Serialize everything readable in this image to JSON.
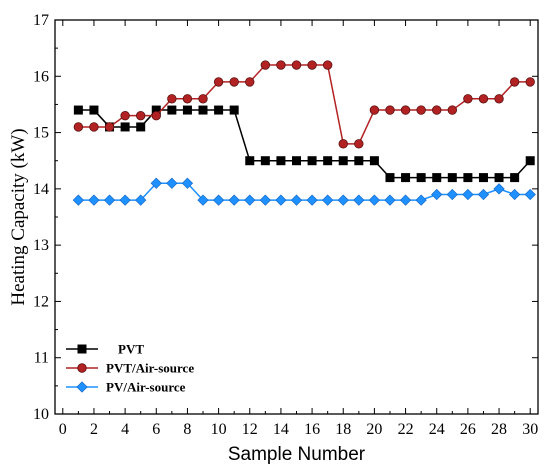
{
  "chart_data": {
    "type": "line",
    "title": "",
    "xlabel": "Sample Number",
    "ylabel": "Heating Capacity (kW)",
    "xlim": [
      -0.5,
      30.5
    ],
    "ylim": [
      10,
      17
    ],
    "x_ticks": [
      0,
      2,
      4,
      6,
      8,
      10,
      12,
      14,
      16,
      18,
      20,
      22,
      24,
      26,
      28,
      30
    ],
    "y_ticks": [
      10,
      11,
      12,
      13,
      14,
      15,
      16,
      17
    ],
    "grid": false,
    "legend_position": "bottom-left",
    "x": [
      1,
      2,
      3,
      4,
      5,
      6,
      7,
      8,
      9,
      10,
      11,
      12,
      13,
      14,
      15,
      16,
      17,
      18,
      19,
      20,
      21,
      22,
      23,
      24,
      25,
      26,
      27,
      28,
      29,
      30
    ],
    "series": [
      {
        "name": "PVT",
        "marker": "square",
        "color": "#000000",
        "values": [
          15.4,
          15.4,
          15.1,
          15.1,
          15.1,
          15.4,
          15.4,
          15.4,
          15.4,
          15.4,
          15.4,
          14.5,
          14.5,
          14.5,
          14.5,
          14.5,
          14.5,
          14.5,
          14.5,
          14.5,
          14.2,
          14.2,
          14.2,
          14.2,
          14.2,
          14.2,
          14.2,
          14.2,
          14.2,
          14.5
        ]
      },
      {
        "name": "PVT/Air-source",
        "marker": "circle",
        "color": "#b22222",
        "values": [
          15.1,
          15.1,
          15.1,
          15.3,
          15.3,
          15.3,
          15.6,
          15.6,
          15.6,
          15.9,
          15.9,
          15.9,
          16.2,
          16.2,
          16.2,
          16.2,
          16.2,
          14.8,
          14.8,
          15.4,
          15.4,
          15.4,
          15.4,
          15.4,
          15.4,
          15.6,
          15.6,
          15.6,
          15.9,
          15.9
        ]
      },
      {
        "name": "PV/Air-source",
        "marker": "diamond",
        "color": "#1e90ff",
        "values": [
          13.8,
          13.8,
          13.8,
          13.8,
          13.8,
          14.1,
          14.1,
          14.1,
          13.8,
          13.8,
          13.8,
          13.8,
          13.8,
          13.8,
          13.8,
          13.8,
          13.8,
          13.8,
          13.8,
          13.8,
          13.8,
          13.8,
          13.8,
          13.9,
          13.9,
          13.9,
          13.9,
          14.0,
          13.9,
          13.9
        ]
      }
    ]
  }
}
